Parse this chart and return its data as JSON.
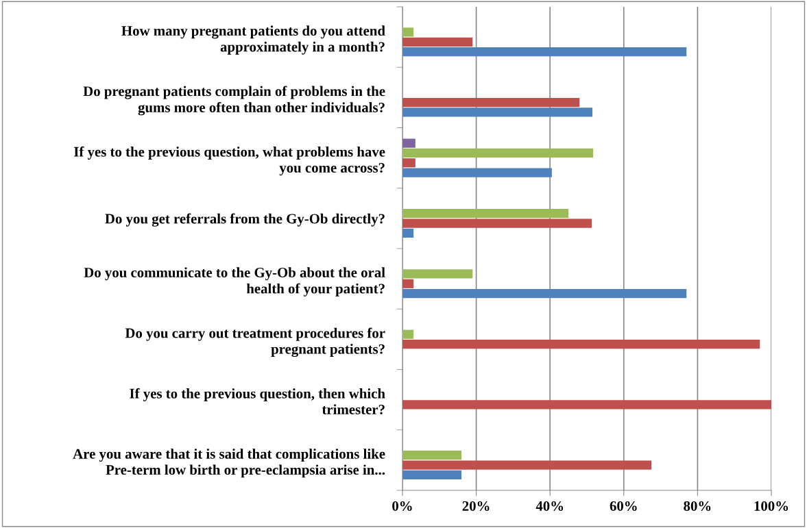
{
  "chart_data": {
    "type": "bar",
    "orientation": "horizontal",
    "categories": [
      "How many pregnant patients do you attend\napproximately in a month?",
      "Do pregnant patients complain of problems in the\ngums more often than other individuals?",
      "If yes to the previous question, what problems have\nyou come across?",
      "Do you get referrals from the Gy-Ob directly?",
      "Do you communicate to the Gy-Ob about the oral\nhealth of your patient?",
      "Do you carry out treatment procedures for\npregnant patients?",
      "If yes to the previous question, then which\ntrimester?",
      "Are you aware that it is said that complications like\nPre-term low birth or pre-eclampsia arise in..."
    ],
    "series": [
      {
        "color": "#4f81bd",
        "values": [
          77,
          51.5,
          40.5,
          3,
          77,
          null,
          null,
          16
        ]
      },
      {
        "color": "#c0504d",
        "values": [
          19,
          48,
          3.5,
          51.3,
          3,
          96.9,
          100,
          67.5
        ]
      },
      {
        "color": "#9bbb59",
        "values": [
          3,
          null,
          51.7,
          45,
          19,
          3,
          null,
          16
        ]
      },
      {
        "color": "#8064a2",
        "values": [
          null,
          null,
          3.5,
          null,
          null,
          null,
          null,
          null
        ]
      }
    ],
    "xlim": [
      0,
      100
    ],
    "xticks": [
      {
        "value": 0,
        "label": "0%"
      },
      {
        "value": 20,
        "label": "20%"
      },
      {
        "value": 40,
        "label": "40%"
      },
      {
        "value": 60,
        "label": "60%"
      },
      {
        "value": 80,
        "label": "80%"
      },
      {
        "value": 100,
        "label": "100%"
      }
    ],
    "grid": "x",
    "legend": false
  }
}
